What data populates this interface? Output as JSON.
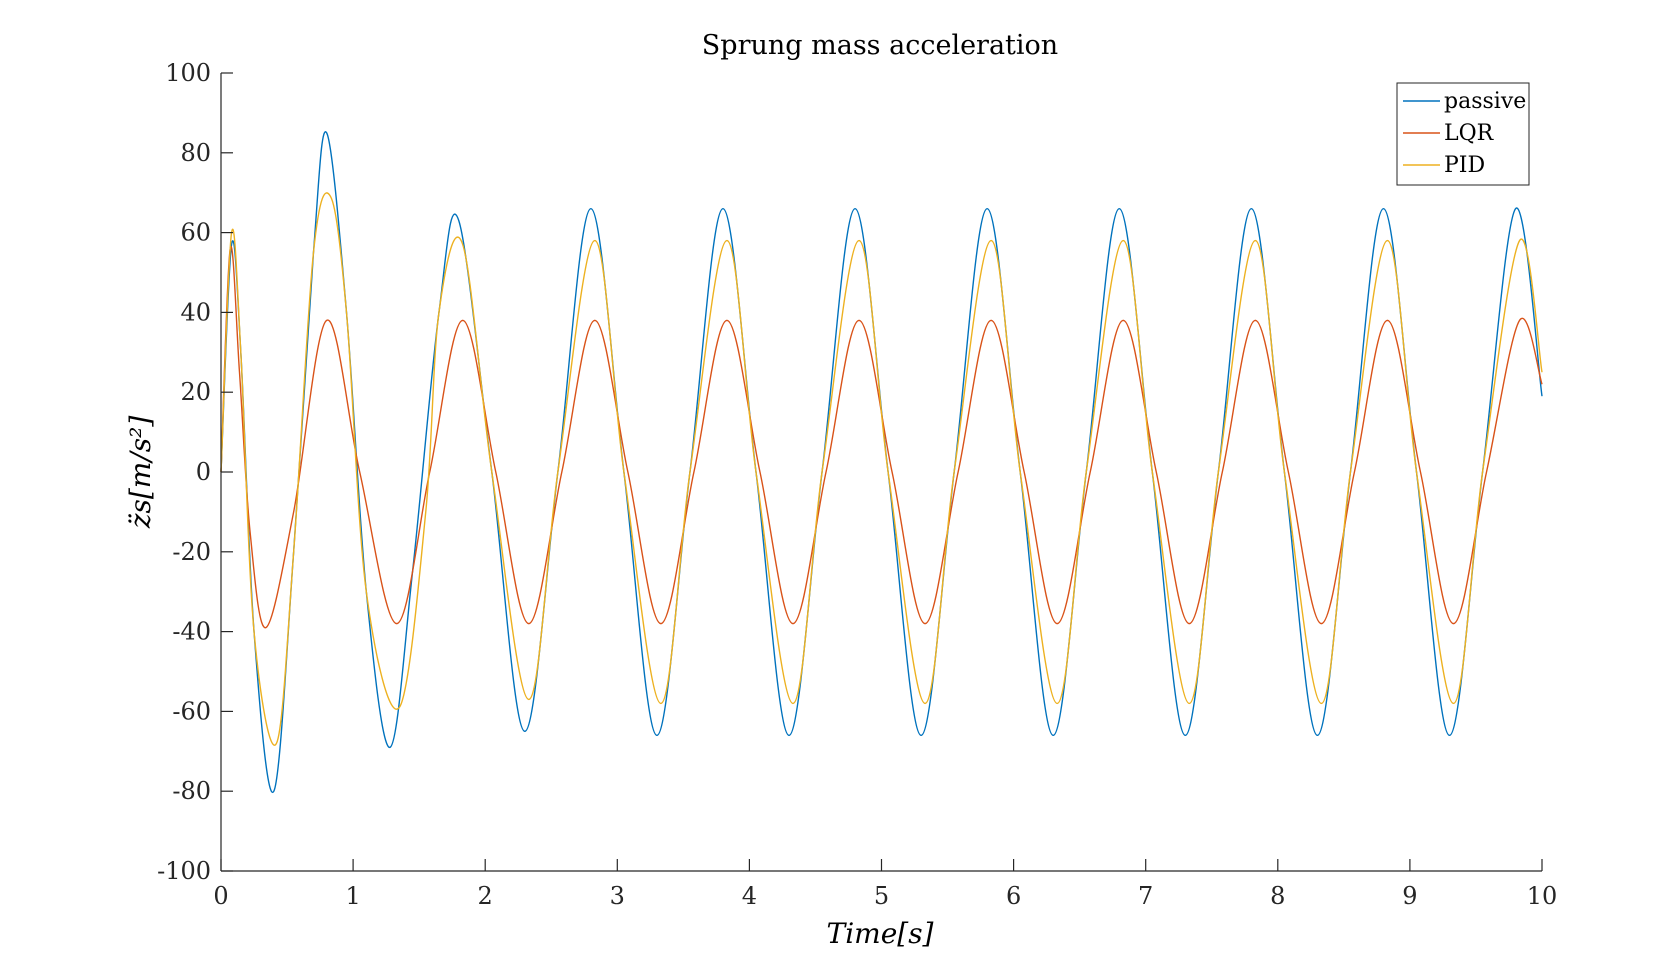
{
  "chart_data": {
    "type": "line",
    "title": "Sprung mass acceleration",
    "xlabel": "Time[s]",
    "ylabel": "z̈s[m/s²]",
    "xlim": [
      0,
      10
    ],
    "ylim": [
      -100,
      100
    ],
    "xticks": [
      "0",
      "1",
      "2",
      "3",
      "4",
      "5",
      "6",
      "7",
      "8",
      "9",
      "10"
    ],
    "yticks": [
      "100",
      "80",
      "60",
      "40",
      "20",
      "0",
      "-20",
      "-40",
      "-60",
      "-80",
      "-100"
    ],
    "grid": false,
    "legend_position": "top-right",
    "colors": {
      "passive": "#0072BD",
      "LQR": "#D95319",
      "PID": "#EDB120"
    },
    "series": [
      {
        "name": "passive",
        "x": [
          0,
          0.08,
          0.15,
          0.25,
          0.4,
          0.55,
          0.7,
          0.8,
          0.95,
          1.1,
          1.28,
          1.45,
          1.65,
          1.8,
          2.05,
          2.3,
          2.55,
          2.8,
          3.05,
          3.3,
          3.55,
          3.8,
          4.05,
          4.3,
          4.55,
          4.8,
          5.05,
          5.3,
          5.55,
          5.8,
          6.05,
          6.3,
          6.55,
          6.8,
          7.05,
          7.3,
          7.55,
          7.8,
          8.05,
          8.3,
          8.55,
          8.8,
          9.05,
          9.3,
          9.55,
          9.8,
          10.0
        ],
        "y": [
          0,
          57,
          30,
          -40,
          -80,
          -20,
          55,
          85,
          40,
          -30,
          -69,
          -25,
          40,
          63,
          0,
          -65,
          0,
          66,
          0,
          -66,
          0,
          66,
          0,
          -66,
          0,
          66,
          0,
          -66,
          0,
          66,
          0,
          -66,
          0,
          66,
          0,
          -66,
          0,
          66,
          0,
          -66,
          0,
          66,
          0,
          -66,
          0,
          66,
          19
        ]
      },
      {
        "name": "LQR",
        "x": [
          0,
          0.07,
          0.14,
          0.22,
          0.34,
          0.55,
          0.8,
          1.05,
          1.33,
          1.58,
          1.83,
          2.08,
          2.33,
          2.58,
          2.83,
          3.08,
          3.33,
          3.58,
          3.83,
          4.08,
          4.33,
          4.58,
          4.83,
          5.08,
          5.33,
          5.58,
          5.83,
          6.08,
          6.33,
          6.58,
          6.83,
          7.08,
          7.33,
          7.58,
          7.83,
          8.08,
          8.33,
          8.58,
          8.83,
          9.08,
          9.33,
          9.58,
          9.83,
          10.0
        ],
        "y": [
          0,
          56,
          25,
          -15,
          -39,
          -10,
          38,
          0,
          -38,
          0,
          38,
          0,
          -38,
          0,
          38,
          0,
          -38,
          0,
          38,
          0,
          -38,
          0,
          38,
          0,
          -38,
          0,
          38,
          0,
          -38,
          0,
          38,
          0,
          -38,
          0,
          38,
          0,
          -38,
          0,
          38,
          0,
          -38,
          0,
          38,
          22
        ]
      },
      {
        "name": "PID",
        "x": [
          0,
          0.08,
          0.15,
          0.25,
          0.42,
          0.55,
          0.7,
          0.83,
          0.95,
          1.1,
          1.35,
          1.55,
          1.65,
          1.83,
          2.05,
          2.33,
          2.55,
          2.83,
          3.05,
          3.33,
          3.55,
          3.83,
          4.05,
          4.33,
          4.55,
          4.83,
          5.05,
          5.33,
          5.55,
          5.83,
          6.05,
          6.33,
          6.55,
          6.83,
          7.05,
          7.33,
          7.55,
          7.83,
          8.05,
          8.33,
          8.55,
          8.83,
          9.05,
          9.33,
          9.55,
          9.83,
          10.0
        ],
        "y": [
          0,
          60,
          30,
          -40,
          -68,
          -20,
          55,
          69,
          40,
          -30,
          -59,
          -10,
          40,
          57,
          0,
          -57,
          0,
          58,
          0,
          -58,
          0,
          58,
          0,
          -58,
          0,
          58,
          0,
          -58,
          0,
          58,
          0,
          -58,
          0,
          58,
          0,
          -58,
          0,
          58,
          0,
          -58,
          0,
          58,
          0,
          -58,
          0,
          58,
          25
        ]
      }
    ]
  }
}
